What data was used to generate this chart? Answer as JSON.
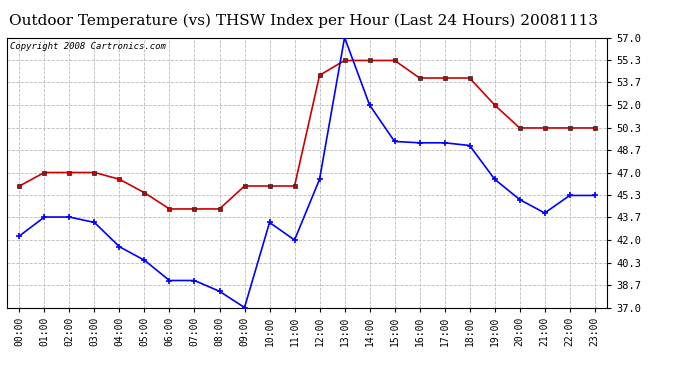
{
  "title": "Outdoor Temperature (vs) THSW Index per Hour (Last 24 Hours) 20081113",
  "copyright": "Copyright 2008 Cartronics.com",
  "hours": [
    0,
    1,
    2,
    3,
    4,
    5,
    6,
    7,
    8,
    9,
    10,
    11,
    12,
    13,
    14,
    15,
    16,
    17,
    18,
    19,
    20,
    21,
    22,
    23
  ],
  "hour_labels": [
    "00:00",
    "01:00",
    "02:00",
    "03:00",
    "04:00",
    "05:00",
    "06:00",
    "07:00",
    "08:00",
    "09:00",
    "10:00",
    "11:00",
    "12:00",
    "13:00",
    "14:00",
    "15:00",
    "16:00",
    "17:00",
    "18:00",
    "19:00",
    "20:00",
    "21:00",
    "22:00",
    "23:00"
  ],
  "outdoor_temp": [
    42.3,
    43.7,
    43.7,
    43.3,
    41.5,
    40.5,
    39.0,
    39.0,
    38.2,
    37.0,
    43.3,
    42.0,
    46.5,
    57.0,
    52.0,
    49.3,
    49.2,
    49.2,
    49.0,
    46.5,
    45.0,
    44.0,
    45.3,
    45.3
  ],
  "thsw_index": [
    46.0,
    47.0,
    47.0,
    47.0,
    46.5,
    45.5,
    44.3,
    44.3,
    44.3,
    46.0,
    46.0,
    46.0,
    54.2,
    55.3,
    55.3,
    55.3,
    54.0,
    54.0,
    54.0,
    52.0,
    50.3,
    50.3,
    50.3,
    50.3
  ],
  "temp_color": "#0000ff",
  "thsw_color": "#cc0000",
  "bg_color": "#ffffff",
  "plot_bg_color": "#ffffff",
  "grid_color": "#bbbbbb",
  "ylim_min": 37.0,
  "ylim_max": 57.0,
  "yticks": [
    37.0,
    38.7,
    40.3,
    42.0,
    43.7,
    45.3,
    47.0,
    48.7,
    50.3,
    52.0,
    53.7,
    55.3,
    57.0
  ],
  "title_fontsize": 11,
  "copyright_fontsize": 6.5,
  "tick_fontsize": 7,
  "ytick_fontsize": 7.5
}
